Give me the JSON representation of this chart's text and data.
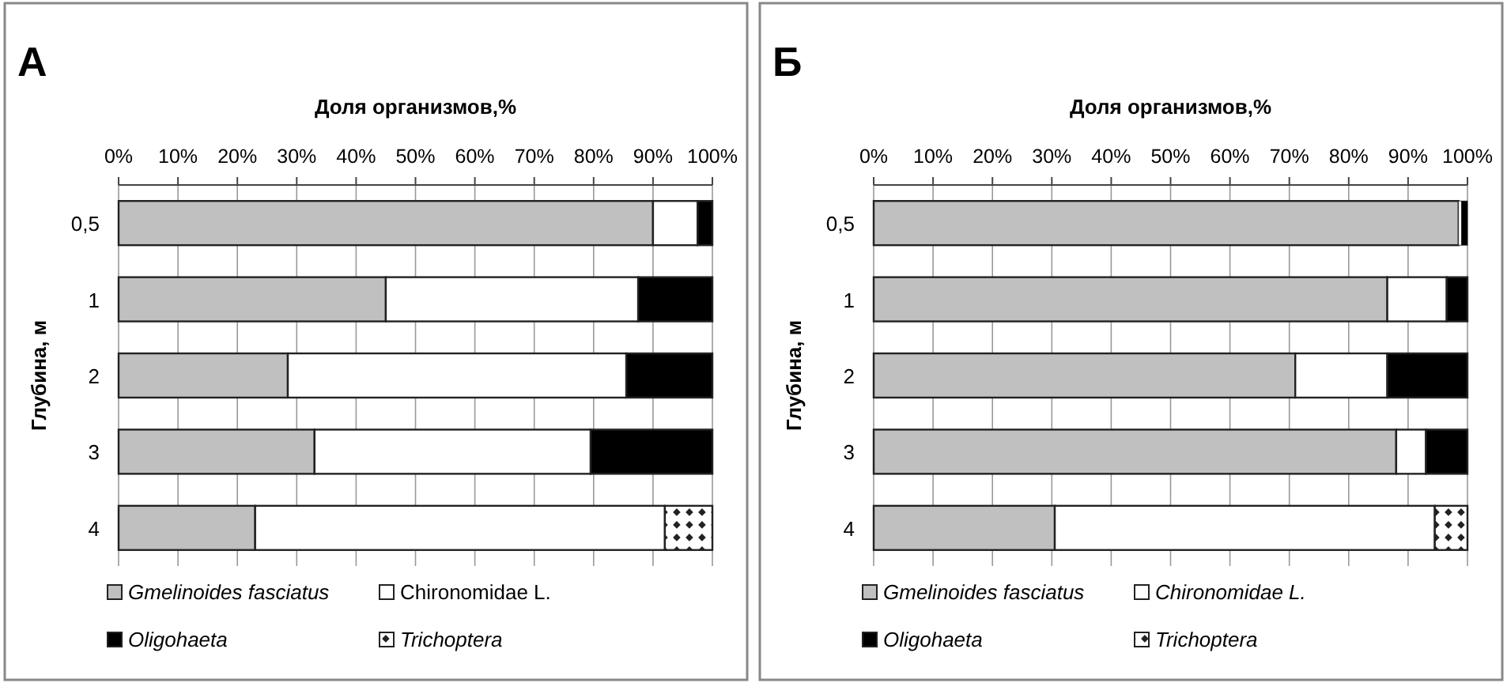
{
  "chart_data": [
    {
      "type": "bar",
      "title": "А",
      "xlabel": "Доля организмов,%",
      "ylabel": "Глубина, м",
      "orientation": "horizontal",
      "stacked": true,
      "categories": [
        "0,5",
        "1",
        "2",
        "3",
        "4"
      ],
      "xlim": [
        0,
        100
      ],
      "xticks": [
        {
          "value": 0,
          "label": "0%"
        },
        {
          "value": 10,
          "label": "10%"
        },
        {
          "value": 20,
          "label": "20%"
        },
        {
          "value": 30,
          "label": "30%"
        },
        {
          "value": 40,
          "label": "40%"
        },
        {
          "value": 50,
          "label": "50%"
        },
        {
          "value": 60,
          "label": "60%"
        },
        {
          "value": 70,
          "label": "70%"
        },
        {
          "value": 80,
          "label": "80%"
        },
        {
          "value": 90,
          "label": "90%"
        },
        {
          "value": 100,
          "label": "100%"
        }
      ],
      "grid": "x",
      "legend": "bottom",
      "series": [
        {
          "name": "Gmelinoides fasciatus",
          "color": "#c0c0c0",
          "values": [
            90,
            45,
            28.5,
            33,
            23
          ]
        },
        {
          "name": "Chironomidae L.",
          "color": "#ffffff",
          "values": [
            7.5,
            42.5,
            57,
            46.5,
            69
          ]
        },
        {
          "name": "Oligohaeta",
          "color": "#000000",
          "values": [
            2.5,
            12.5,
            14.5,
            20.5,
            0
          ]
        },
        {
          "name": "Trichoptera",
          "color": "#222222",
          "values": [
            0,
            0,
            0,
            0,
            8
          ]
        }
      ]
    },
    {
      "type": "bar",
      "title": "Б",
      "xlabel": "Доля организмов,%",
      "ylabel": "Глубина, м",
      "orientation": "horizontal",
      "stacked": true,
      "categories": [
        "0,5",
        "1",
        "2",
        "3",
        "4"
      ],
      "xlim": [
        0,
        100
      ],
      "xticks": [
        {
          "value": 0,
          "label": "0%"
        },
        {
          "value": 10,
          "label": "10%"
        },
        {
          "value": 20,
          "label": "20%"
        },
        {
          "value": 30,
          "label": "30%"
        },
        {
          "value": 40,
          "label": "40%"
        },
        {
          "value": 50,
          "label": "50%"
        },
        {
          "value": 60,
          "label": "60%"
        },
        {
          "value": 70,
          "label": "70%"
        },
        {
          "value": 80,
          "label": "80%"
        },
        {
          "value": 90,
          "label": "90%"
        },
        {
          "value": 100,
          "label": "100%"
        }
      ],
      "grid": "x",
      "legend": "bottom",
      "series": [
        {
          "name": "Gmelinoides fasciatus",
          "color": "#c0c0c0",
          "values": [
            98.5,
            86.5,
            71,
            88,
            30.5
          ]
        },
        {
          "name": "Chironomidae L.",
          "color": "#ffffff",
          "values": [
            0.5,
            10,
            15.5,
            5,
            64
          ]
        },
        {
          "name": "Oligohaeta",
          "color": "#000000",
          "values": [
            1,
            3.5,
            13.5,
            7,
            0
          ]
        },
        {
          "name": "Trichoptera",
          "color": "#222222",
          "values": [
            0,
            0,
            0,
            0,
            5.5
          ]
        }
      ]
    }
  ]
}
